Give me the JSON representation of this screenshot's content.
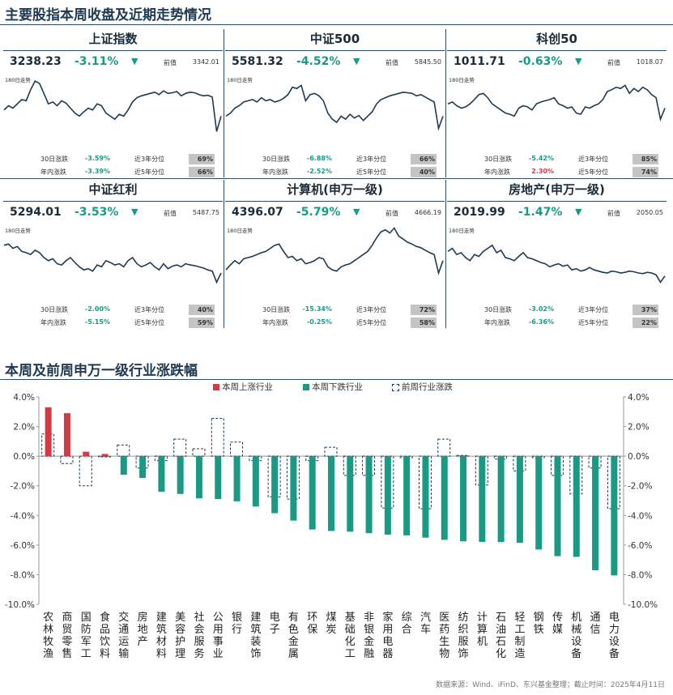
{
  "section1_title": "主要股指本周收盘及近期走势情况",
  "section2_title": "本周及前周申万一级行业涨跌幅",
  "source_note": "数据来源：Wind、iFinD、东兴基金整理；截止时间：2025年4月11日",
  "labels": {
    "prev": "前值",
    "trend": "180日走势",
    "d30": "30日涨跌",
    "ytd": "年内涨跌",
    "p3": "近3年分位",
    "p5": "近5年分位"
  },
  "colors": {
    "up": "#d23a46",
    "down": "#1a9a85",
    "line": "#1f3a52",
    "pct_bg": "#c4c4c4"
  },
  "indices": [
    {
      "name": "上证指数",
      "value": "3238.23",
      "change": "-3.11%",
      "arrow": "▼",
      "prev": "3342.01",
      "d30": "-3.59%",
      "ytd": "-3.39%",
      "p3": "69%",
      "p5": "66%",
      "ytd_dir": "down"
    },
    {
      "name": "中证500",
      "value": "5581.32",
      "change": "-4.52%",
      "arrow": "▼",
      "prev": "5845.50",
      "d30": "-6.88%",
      "ytd": "-2.52%",
      "p3": "66%",
      "p5": "40%",
      "ytd_dir": "down"
    },
    {
      "name": "科创50",
      "value": "1011.71",
      "change": "-0.63%",
      "arrow": "▼",
      "prev": "1018.07",
      "d30": "-5.42%",
      "ytd": "2.30%",
      "p3": "85%",
      "p5": "74%",
      "ytd_dir": "up"
    },
    {
      "name": "中证红利",
      "value": "5294.01",
      "change": "-3.53%",
      "arrow": "▼",
      "prev": "5487.75",
      "d30": "-2.00%",
      "ytd": "-5.15%",
      "p3": "40%",
      "p5": "59%",
      "ytd_dir": "down"
    },
    {
      "name": "计算机(申万一级)",
      "value": "4396.07",
      "change": "-5.79%",
      "arrow": "▼",
      "prev": "4666.19",
      "d30": "-15.34%",
      "ytd": "-0.25%",
      "p3": "72%",
      "p5": "58%",
      "ytd_dir": "down"
    },
    {
      "name": "房地产(申万一级)",
      "value": "2019.99",
      "change": "-1.47%",
      "arrow": "▼",
      "prev": "2050.05",
      "d30": "-3.02%",
      "ytd": "-6.36%",
      "p3": "37%",
      "p5": "22%",
      "ytd_dir": "down"
    }
  ],
  "sparklines": [
    [
      45,
      52,
      48,
      55,
      62,
      60,
      78,
      92,
      88,
      72,
      55,
      58,
      52,
      60,
      56,
      48,
      40,
      35,
      42,
      48,
      45,
      55,
      52,
      40,
      35,
      30,
      38,
      35,
      45,
      58,
      65,
      68,
      70,
      72,
      74,
      70,
      76,
      72,
      73,
      75,
      68,
      72,
      74,
      73,
      70,
      68,
      69,
      66,
      10,
      35
    ],
    [
      35,
      40,
      48,
      52,
      58,
      60,
      62,
      58,
      65,
      60,
      62,
      58,
      60,
      64,
      70,
      82,
      80,
      85,
      60,
      70,
      72,
      68,
      60,
      40,
      30,
      25,
      35,
      30,
      38,
      32,
      36,
      28,
      35,
      42,
      55,
      62,
      65,
      68,
      70,
      72,
      74,
      73,
      72,
      68,
      70,
      66,
      62,
      58,
      15,
      35
    ],
    [
      55,
      58,
      52,
      48,
      50,
      55,
      62,
      70,
      72,
      65,
      55,
      50,
      45,
      40,
      38,
      35,
      48,
      52,
      50,
      45,
      55,
      58,
      60,
      62,
      65,
      55,
      52,
      48,
      50,
      40,
      38,
      50,
      48,
      52,
      55,
      62,
      75,
      78,
      82,
      80,
      85,
      72,
      80,
      75,
      82,
      78,
      70,
      65,
      30,
      48
    ],
    [
      70,
      72,
      65,
      68,
      60,
      58,
      55,
      62,
      58,
      50,
      45,
      48,
      40,
      38,
      45,
      50,
      42,
      35,
      30,
      32,
      28,
      38,
      35,
      45,
      42,
      38,
      40,
      35,
      45,
      50,
      40,
      35,
      38,
      42,
      35,
      30,
      40,
      32,
      36,
      38,
      35,
      40,
      38,
      37,
      35,
      33,
      30,
      28,
      10,
      25
    ],
    [
      30,
      38,
      45,
      40,
      48,
      50,
      52,
      55,
      58,
      60,
      65,
      70,
      72,
      60,
      50,
      52,
      45,
      48,
      40,
      42,
      45,
      50,
      48,
      35,
      30,
      28,
      35,
      38,
      40,
      45,
      50,
      55,
      60,
      70,
      82,
      92,
      95,
      90,
      98,
      85,
      80,
      75,
      72,
      68,
      66,
      62,
      58,
      55,
      25,
      45
    ],
    [
      60,
      65,
      55,
      58,
      50,
      45,
      55,
      52,
      60,
      65,
      70,
      58,
      62,
      50,
      48,
      45,
      52,
      58,
      50,
      48,
      45,
      42,
      40,
      35,
      38,
      40,
      36,
      38,
      30,
      32,
      28,
      30,
      34,
      30,
      28,
      26,
      25,
      28,
      27,
      25,
      26,
      28,
      27,
      25,
      24,
      26,
      25,
      22,
      10,
      20
    ]
  ],
  "legend": {
    "up": "本周上涨行业",
    "down": "本周下跌行业",
    "prev": "前周行业涨跌"
  },
  "chart_data": {
    "type": "bar",
    "title": "本周及前周申万一级行业涨跌幅",
    "ylim": [
      -10.0,
      4.0
    ],
    "yticks": [
      "4.0%",
      "2.0%",
      "0.0%",
      "-2.0%",
      "-4.0%",
      "-6.0%",
      "-8.0%",
      "-10.0%"
    ],
    "categories": [
      "农林牧渔",
      "商贸零售",
      "国防军工",
      "食品饮料",
      "交通运输",
      "房地产",
      "建筑材料",
      "美容护理",
      "社会服务",
      "公用事业",
      "银行",
      "建筑装饰",
      "电子",
      "有色金属",
      "环保",
      "煤炭",
      "基础化工",
      "非银金融",
      "家用电器",
      "综合",
      "汽车",
      "医药生物",
      "纺织服饰",
      "计算机",
      "石油石化",
      "轻工制造",
      "钢铁",
      "传媒",
      "机械设备",
      "通信",
      "电力设备"
    ],
    "series": [
      {
        "name": "本周上涨行业/本周下跌行业",
        "values": [
          3.3,
          2.9,
          0.3,
          0.15,
          -1.25,
          -1.47,
          -2.4,
          -2.55,
          -2.85,
          -2.9,
          -3.05,
          -3.4,
          -3.85,
          -4.35,
          -4.95,
          -5.05,
          -5.1,
          -5.2,
          -5.3,
          -5.35,
          -5.5,
          -5.65,
          -5.75,
          -5.79,
          -5.8,
          -5.85,
          -6.3,
          -6.75,
          -6.8,
          -7.7,
          -8.05
        ]
      },
      {
        "name": "前周行业涨跌",
        "values": [
          1.5,
          -0.5,
          -2.0,
          0.0,
          0.75,
          -0.8,
          -0.3,
          1.15,
          0.5,
          2.55,
          0.95,
          -0.3,
          -2.75,
          -2.9,
          -0.3,
          0.6,
          -1.3,
          -1.3,
          -3.5,
          -0.1,
          -3.55,
          1.15,
          0.05,
          -1.95,
          -0.2,
          -1.0,
          -0.1,
          -1.3,
          -2.55,
          -0.8,
          -3.55
        ]
      }
    ],
    "grid": false,
    "legend_position": "top"
  }
}
